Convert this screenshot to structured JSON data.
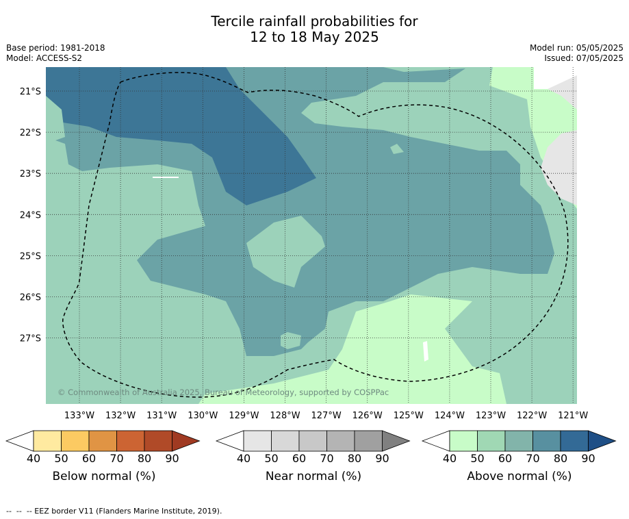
{
  "title_line1": "Tercile rainfall probabilities for",
  "title_line2": "12 to 18 May 2025",
  "base_period": "Base period: 1981-2018",
  "model": "Model: ACCESS-S2",
  "model_run": "Model run: 05/05/2025",
  "issued": "Issued: 07/05/2025",
  "copyright": "© Commonwealth of Australia 2025, Bureau of Meteorology, supported by COSPPac",
  "lat_labels": [
    "21°S",
    "22°S",
    "23°S",
    "24°S",
    "25°S",
    "26°S",
    "27°S"
  ],
  "lon_labels": [
    "133°W",
    "132°W",
    "131°W",
    "130°W",
    "129°W",
    "128°W",
    "127°W",
    "126°W",
    "125°W",
    "124°W",
    "123°W",
    "122°W",
    "121°W"
  ],
  "colorbars": [
    {
      "name": "below",
      "title": "Below normal (%)",
      "ticks": [
        "40",
        "50",
        "60",
        "70",
        "80",
        "90"
      ],
      "colors": [
        "#ffffff",
        "#ffeaa0",
        "#fcca62",
        "#e09444",
        "#cc6433",
        "#b04a28",
        "#a03a22"
      ]
    },
    {
      "name": "near",
      "title": "Near normal (%)",
      "ticks": [
        "40",
        "50",
        "60",
        "70",
        "80",
        "90"
      ],
      "colors": [
        "#ffffff",
        "#e6e6e6",
        "#d8d8d8",
        "#c8c8c8",
        "#b4b4b4",
        "#a0a0a0",
        "#808080"
      ]
    },
    {
      "name": "above",
      "title": "Above normal (%)",
      "ticks": [
        "40",
        "50",
        "60",
        "70",
        "80",
        "90"
      ],
      "colors": [
        "#ffffff",
        "#c8fcc8",
        "#a0d8b4",
        "#82b4aa",
        "#5890a0",
        "#336a96",
        "#1f4f86"
      ]
    }
  ],
  "footer": "--  --  -- EEZ border V11 (Flanders Marine Institute, 2019)."
}
